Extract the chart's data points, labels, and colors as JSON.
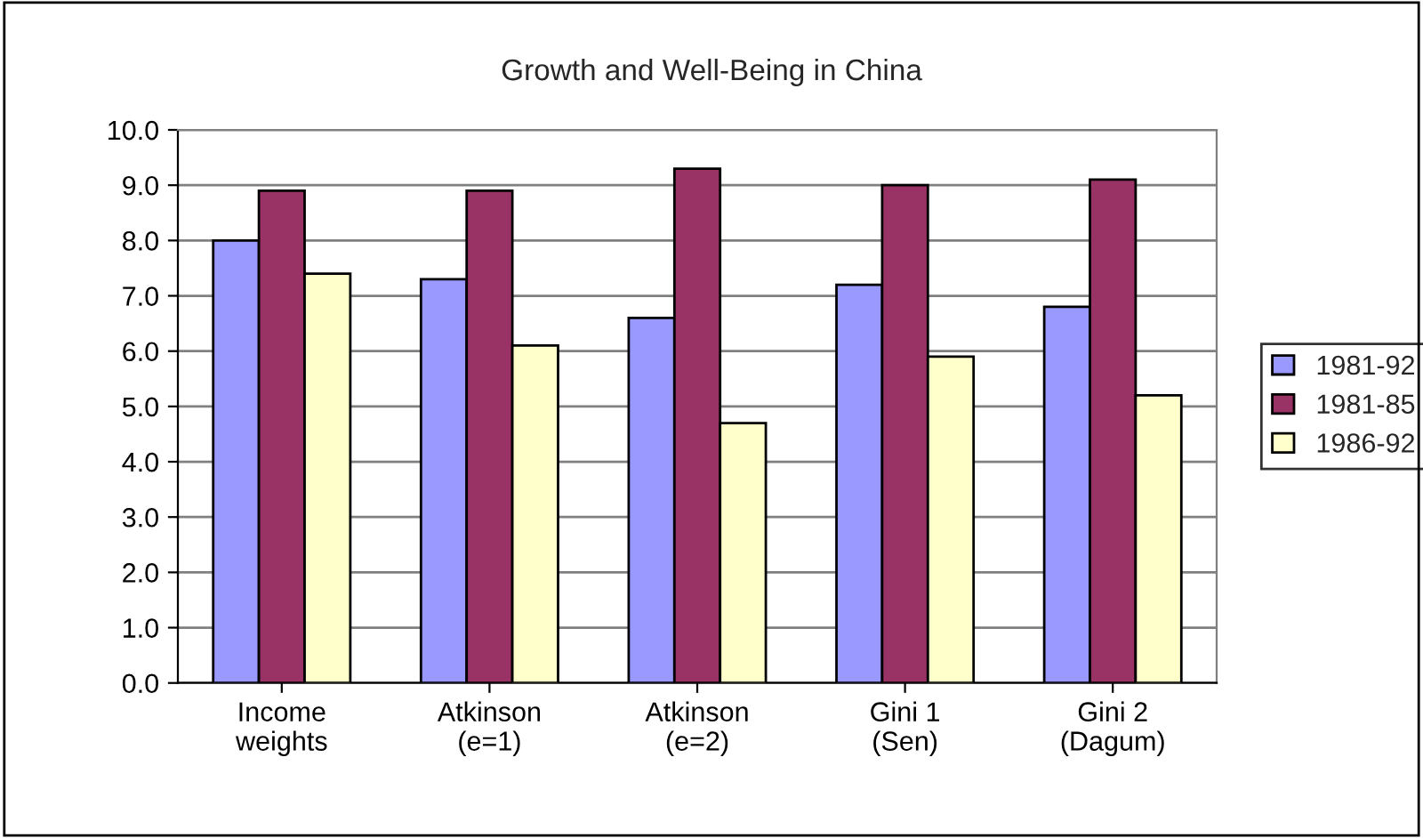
{
  "chart_data": {
    "type": "bar",
    "title": "Growth and Well-Being in China",
    "categories": [
      "Income\nweights",
      "Atkinson\n(e=1)",
      "Atkinson\n(e=2)",
      "Gini 1\n(Sen)",
      "Gini 2\n(Dagum)"
    ],
    "series": [
      {
        "name": "1981-92",
        "color": "#9999ff",
        "values": [
          8.0,
          7.3,
          6.6,
          7.2,
          6.8
        ]
      },
      {
        "name": "1981-85",
        "color": "#993366",
        "values": [
          8.9,
          8.9,
          9.3,
          9.0,
          9.1
        ]
      },
      {
        "name": "1986-92",
        "color": "#ffffcc",
        "values": [
          7.4,
          6.1,
          4.7,
          5.9,
          5.2
        ]
      }
    ],
    "ylim": [
      0,
      10
    ],
    "yticks": [
      {
        "value": 0,
        "label": "0.0"
      },
      {
        "value": 1,
        "label": "1.0"
      },
      {
        "value": 2,
        "label": "2.0"
      },
      {
        "value": 3,
        "label": "3.0"
      },
      {
        "value": 4,
        "label": "4.0"
      },
      {
        "value": 5,
        "label": "5.0"
      },
      {
        "value": 6,
        "label": "6.0"
      },
      {
        "value": 7,
        "label": "7.0"
      },
      {
        "value": 8,
        "label": "8.0"
      },
      {
        "value": 9,
        "label": "9.0"
      },
      {
        "value": 10,
        "label": "10.0"
      }
    ],
    "grid": "y",
    "legend": "right"
  }
}
